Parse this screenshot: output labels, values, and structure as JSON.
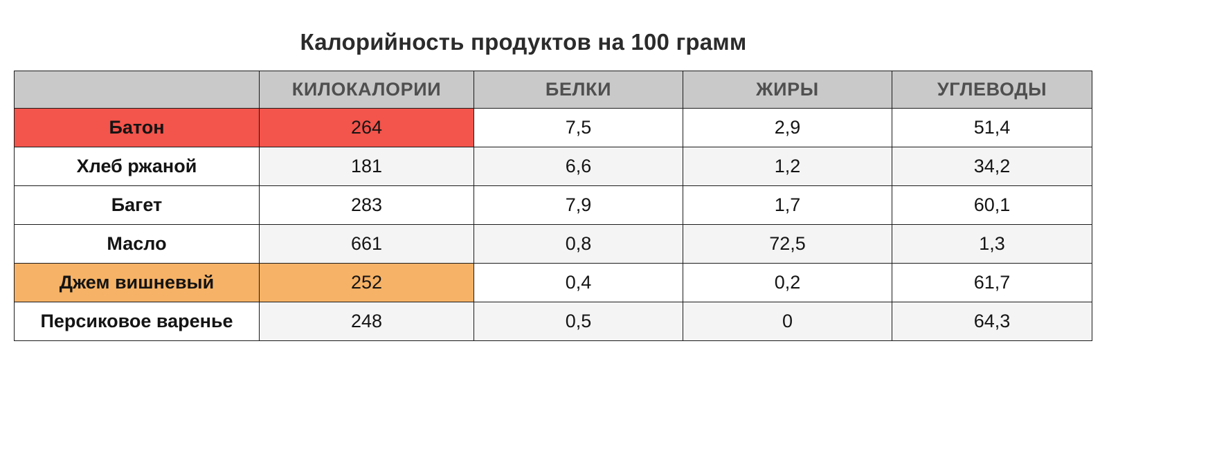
{
  "title": "Калорийность продуктов на 100 грамм",
  "table": {
    "headers": [
      "",
      "КИЛОКАЛОРИИ",
      "БЕЛКИ",
      "ЖИРЫ",
      "УГЛЕВОДЫ"
    ],
    "rows": [
      {
        "label": "Батон",
        "values": [
          "264",
          "7,5",
          "2,9",
          "51,4"
        ],
        "highlight": "red"
      },
      {
        "label": "Хлеб ржаной",
        "values": [
          "181",
          "6,6",
          "1,2",
          "34,2"
        ],
        "highlight": null
      },
      {
        "label": "Багет",
        "values": [
          "283",
          "7,9",
          "1,7",
          "60,1"
        ],
        "highlight": null
      },
      {
        "label": "Масло",
        "values": [
          "661",
          "0,8",
          "72,5",
          "1,3"
        ],
        "highlight": null
      },
      {
        "label": "Джем вишневый",
        "values": [
          "252",
          "0,4",
          "0,2",
          "61,7"
        ],
        "highlight": "orange"
      },
      {
        "label": "Персиковое варенье",
        "values": [
          "248",
          "0,5",
          "0",
          "64,3"
        ],
        "highlight": null
      }
    ],
    "colors": {
      "header_bg": "#c9c9c9",
      "header_text": "#4f4f4f",
      "red": "#f3544b",
      "orange": "#f6b266",
      "band": "#f4f4f4",
      "border": "#1a1a1a"
    }
  },
  "chart_data": {
    "type": "table",
    "title": "Калорийность продуктов на 100 грамм",
    "columns": [
      "",
      "КИЛОКАЛОРИИ",
      "БЕЛКИ",
      "ЖИРЫ",
      "УГЛЕВОДЫ"
    ],
    "rows": [
      [
        "Батон",
        264,
        7.5,
        2.9,
        51.4
      ],
      [
        "Хлеб ржаной",
        181,
        6.6,
        1.2,
        34.2
      ],
      [
        "Багет",
        283,
        7.9,
        1.7,
        60.1
      ],
      [
        "Масло",
        661,
        0.8,
        72.5,
        1.3
      ],
      [
        "Джем вишневый",
        252,
        0.4,
        0.2,
        61.7
      ],
      [
        "Персиковое варенье",
        248,
        0.5,
        0,
        64.3
      ]
    ],
    "highlighted_rows": [
      {
        "row": "Батон",
        "cells": [
          "label",
          "КИЛОКАЛОРИИ"
        ],
        "color": "#f3544b"
      },
      {
        "row": "Джем вишневый",
        "cells": [
          "label",
          "КИЛОКАЛОРИИ"
        ],
        "color": "#f6b266"
      }
    ],
    "layout": {
      "grid": true,
      "decimal_separator": ",",
      "banded_value_rows": [
        1,
        3,
        5
      ]
    }
  }
}
